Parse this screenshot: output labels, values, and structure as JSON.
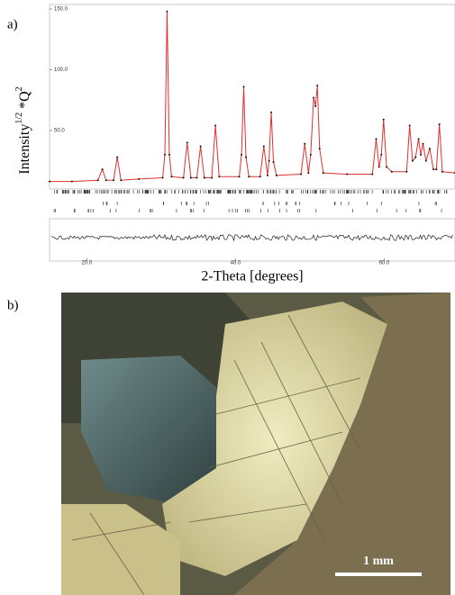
{
  "panel_labels": [
    "a)",
    "b)"
  ],
  "chart_data": {
    "type": "line",
    "ylabel": {
      "main": "Intensity",
      "sup1": "1/2",
      "mid": " *Q",
      "sup2": "2"
    },
    "xlabel": "2-Theta [degrees]",
    "x": [
      15,
      18,
      21.5,
      22.1,
      22.6,
      23.6,
      24.1,
      24.6,
      27,
      30.2,
      30.5,
      30.8,
      31.1,
      31.4,
      33.0,
      33.5,
      34.0,
      34.8,
      35.3,
      35.8,
      36.8,
      37.3,
      37.8,
      40.5,
      40.8,
      41.1,
      41.4,
      41.8,
      43.3,
      43.8,
      44.3,
      44.5,
      44.8,
      45.1,
      45.5,
      48.8,
      49.3,
      49.8,
      50.1,
      50.5,
      50.75,
      51.0,
      51.3,
      51.8,
      55,
      58.4,
      58.9,
      59.3,
      59.6,
      59.9,
      60.3,
      61,
      63.0,
      63.4,
      63.8,
      64.2,
      64.6,
      64.9,
      65.2,
      65.6,
      66.1,
      66.6,
      67.0,
      67.4,
      67.8,
      69.5
    ],
    "series": [
      {
        "color": "#e03030",
        "values": [
          8,
          8,
          9,
          18,
          9,
          9,
          28,
          9,
          10,
          11,
          30,
          148,
          30,
          12,
          11,
          40,
          11,
          11,
          37,
          11,
          11,
          54,
          12,
          12,
          30,
          86,
          28,
          12,
          12,
          37,
          13,
          25,
          65,
          24,
          13,
          14,
          39,
          15,
          30,
          77,
          70,
          87,
          35,
          15,
          14,
          14,
          43,
          20,
          30,
          59,
          20,
          16,
          16,
          54,
          25,
          28,
          43,
          30,
          39,
          25,
          35,
          18,
          18,
          55,
          16,
          15
        ]
      }
    ],
    "xlim": [
      15,
      69.5
    ],
    "ylim": [
      4,
      150
    ],
    "xticks": [
      {
        "value": 20,
        "label": "20.0"
      },
      {
        "value": 40,
        "label": "40.0"
      },
      {
        "value": 60,
        "label": "60.0"
      }
    ],
    "yticks": [
      {
        "value": 50,
        "label": "50.0"
      },
      {
        "value": 100,
        "label": "100.0"
      },
      {
        "value": 150,
        "label": "150.0"
      }
    ],
    "markers": true
  },
  "micrograph": {
    "scale_bar": "1 mm"
  }
}
